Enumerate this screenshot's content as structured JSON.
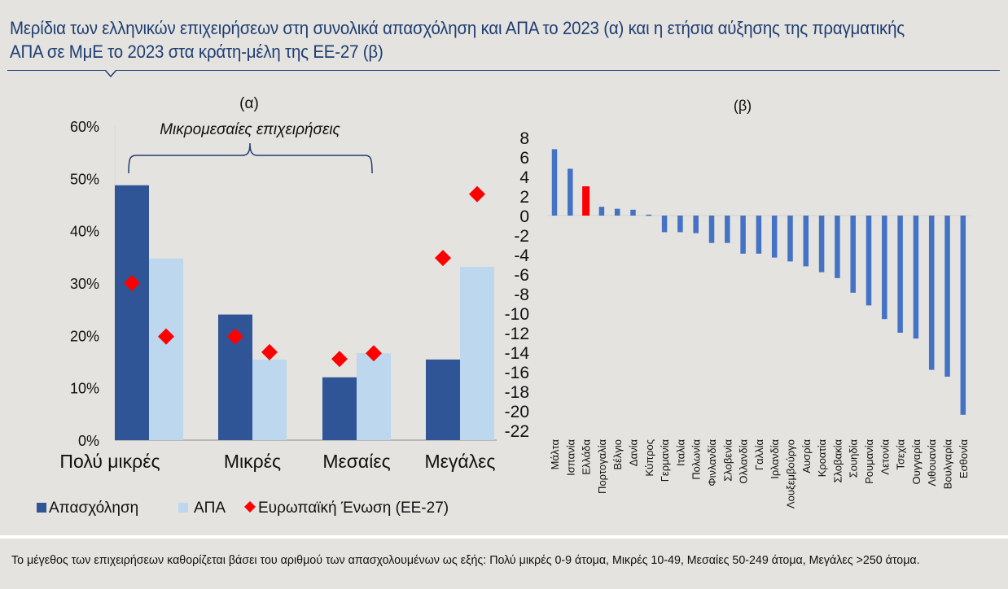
{
  "title": "Μερίδια των ελληνικών επιχειρήσεων στη συνολικά απασχόληση και ΑΠΑ το 2023 (α) και η ετήσια αύξησης της πραγματικής ΑΠΑ σε ΜμΕ το 2023 στα κράτη-μέλη της ΕΕ-27 (β)",
  "footnote": "Το μέγεθος των επιχειρήσεων καθορίζεται βάσει του αριθμού των απασχολουμένων ως εξής: Πολύ μικρές 0-9 άτομα, Μικρές 10-49, Μεσαίες 50-249 άτομα, Μεγάλες >250 άτομα.",
  "colors": {
    "employment": "#2f5597",
    "gva": "#bdd7ee",
    "eu": "#ff0000",
    "bars_b": "#4472c4",
    "greece": "#ff0000",
    "title": "#1f3e73"
  },
  "chart_data": [
    {
      "type": "bar",
      "panel_label": "(α)",
      "annotation": "Μικρομεσαίες επιχειρήσεις",
      "categories": [
        "Πολύ μικρές",
        "Μικρές",
        "Μεσαίες",
        "Μεγάλες"
      ],
      "series": [
        {
          "name": "Απασχόληση",
          "kind": "bar",
          "values": [
            48.7,
            24.0,
            12.0,
            15.4
          ]
        },
        {
          "name": "ΑΠΑ",
          "kind": "bar",
          "values": [
            34.7,
            15.4,
            16.6,
            33.1
          ]
        },
        {
          "name": "Ευρωπαϊκή Ένωση (ΕΕ-27)",
          "kind": "marker",
          "values_employment": [
            30.0,
            19.8,
            15.5,
            34.8
          ],
          "values_gva": [
            19.8,
            16.8,
            16.6,
            47.0
          ]
        }
      ],
      "yticks": [
        "0%",
        "10%",
        "20%",
        "30%",
        "40%",
        "50%",
        "60%"
      ],
      "ylim": [
        0,
        60
      ],
      "legend": [
        "Απασχόληση",
        "ΑΠΑ",
        "Ευρωπαϊκή Ένωση (ΕΕ-27)"
      ],
      "legend_position": "bottom"
    },
    {
      "type": "bar",
      "panel_label": "(β)",
      "categories": [
        "Μάλτα",
        "Ισπανία",
        "Ελλάδα",
        "Πορτογαλία",
        "Βέλγιο",
        "Δανία",
        "Κύπρος",
        "Γερμανία",
        "Ιταλία",
        "Πολωνία",
        "Φινλανδία",
        "Σλοβενία",
        "Ολλανδία",
        "Γαλλία",
        "Ιρλανδία",
        "Λουξεμβούργο",
        "Αυσρία",
        "Κροατία",
        "Σλοβακία",
        "Σουηδία",
        "Ρουμανία",
        "Λετονία",
        "Τσεχία",
        "Ουγγαρία",
        "Λιθουανία",
        "Βουλγαρία",
        "Εσθονία"
      ],
      "values": [
        6.8,
        4.8,
        3.0,
        0.9,
        0.7,
        0.6,
        0.1,
        -1.7,
        -1.7,
        -1.8,
        -2.8,
        -2.8,
        -3.9,
        -3.9,
        -4.3,
        -4.7,
        -5.2,
        -5.8,
        -6.4,
        -7.9,
        -9.2,
        -10.6,
        -12.0,
        -12.6,
        -15.8,
        -16.5,
        -20.4
      ],
      "highlight": "Ελλάδα",
      "yticks": [
        "8",
        "6",
        "4",
        "2",
        "0",
        "-2",
        "-4",
        "-6",
        "-8",
        "-10",
        "-12",
        "-14",
        "-16",
        "-18",
        "-20",
        "-22"
      ],
      "ylim": [
        -22,
        8
      ]
    }
  ]
}
